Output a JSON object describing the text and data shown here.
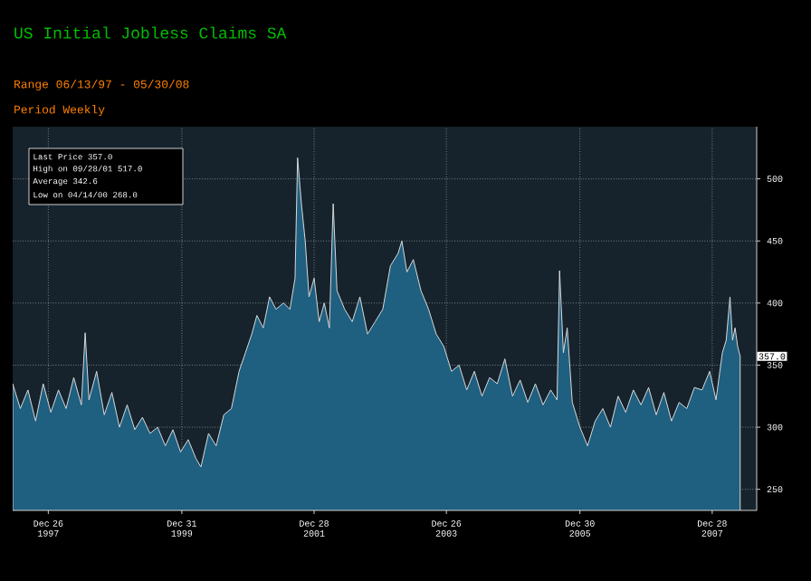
{
  "chart_data": {
    "type": "area",
    "title": "US Initial Jobless Claims SA",
    "annotations": [
      "Range 06/13/97 - 05/30/08",
      "Period Weekly",
      "Last Price 357.0",
      "High on 09/28/01 517.0",
      "Average 342.6",
      "Low on 04/14/00 268.0",
      {
        "text": "357.0",
        "x": "2008-05-30",
        "y": 357
      }
    ],
    "xlim": [
      "1997-06-13",
      "2008-08-29"
    ],
    "ylim": [
      233,
      542
    ],
    "xticks": [
      {
        "value": "1997-12-26",
        "label": "Dec 26 1997"
      },
      {
        "value": "1999-12-31",
        "label": "Dec 31 1999"
      },
      {
        "value": "2001-12-28",
        "label": "Dec 28 2001"
      },
      {
        "value": "2003-12-26",
        "label": "Dec 26 2003"
      },
      {
        "value": "2005-12-30",
        "label": "Dec 30 2005"
      },
      {
        "value": "2007-12-28",
        "label": "Dec 28 2007"
      }
    ],
    "yticks": [
      250,
      300,
      350,
      400,
      450,
      500
    ],
    "grid": true,
    "series": [
      {
        "color": "#1f5f80",
        "x": [
          "1997-06-13",
          "1997-07-25",
          "1997-09-05",
          "1997-10-17",
          "1997-11-28",
          "1998-01-09",
          "1998-02-20",
          "1998-04-03",
          "1998-05-15",
          "1998-06-26",
          "1998-07-17",
          "1998-08-07",
          "1998-09-18",
          "1998-10-30",
          "1998-12-11",
          "1999-01-22",
          "1999-03-05",
          "1999-04-16",
          "1999-05-28",
          "1999-07-09",
          "1999-08-20",
          "1999-10-01",
          "1999-11-12",
          "1999-12-24",
          "2000-02-04",
          "2000-03-17",
          "2000-04-14",
          "2000-05-26",
          "2000-07-07",
          "2000-08-18",
          "2000-09-29",
          "2000-10-20",
          "2000-11-10",
          "2000-12-15",
          "2001-01-19",
          "2001-02-16",
          "2001-03-23",
          "2001-04-27",
          "2001-06-01",
          "2001-07-13",
          "2001-08-17",
          "2001-09-14",
          "2001-09-28",
          "2001-10-19",
          "2001-11-09",
          "2001-11-30",
          "2001-12-28",
          "2002-01-25",
          "2002-02-22",
          "2002-03-22",
          "2002-04-12",
          "2002-05-03",
          "2002-06-14",
          "2002-07-26",
          "2002-09-06",
          "2002-10-18",
          "2002-11-29",
          "2003-01-10",
          "2003-02-21",
          "2003-04-04",
          "2003-04-25",
          "2003-05-23",
          "2003-06-27",
          "2003-08-08",
          "2003-09-19",
          "2003-10-31",
          "2003-12-12",
          "2004-01-23",
          "2004-03-05",
          "2004-04-16",
          "2004-05-28",
          "2004-07-09",
          "2004-08-20",
          "2004-10-01",
          "2004-11-12",
          "2004-12-24",
          "2005-02-04",
          "2005-03-18",
          "2005-04-29",
          "2005-06-10",
          "2005-07-22",
          "2005-08-26",
          "2005-09-09",
          "2005-09-30",
          "2005-10-21",
          "2005-11-18",
          "2005-12-30",
          "2006-02-10",
          "2006-03-24",
          "2006-05-05",
          "2006-06-16",
          "2006-07-28",
          "2006-09-08",
          "2006-10-20",
          "2006-12-01",
          "2007-01-12",
          "2007-02-23",
          "2007-04-06",
          "2007-05-18",
          "2007-06-29",
          "2007-08-10",
          "2007-09-21",
          "2007-11-02",
          "2007-12-14",
          "2008-01-18",
          "2008-02-22",
          "2008-03-14",
          "2008-04-04",
          "2008-04-18",
          "2008-05-02",
          "2008-05-16",
          "2008-05-30"
        ],
        "values": [
          335,
          315,
          330,
          305,
          335,
          312,
          330,
          315,
          340,
          318,
          376,
          322,
          345,
          310,
          328,
          300,
          318,
          298,
          308,
          295,
          300,
          285,
          298,
          280,
          290,
          275,
          268,
          295,
          285,
          310,
          315,
          330,
          345,
          360,
          375,
          390,
          380,
          405,
          395,
          400,
          395,
          420,
          517,
          480,
          450,
          405,
          420,
          385,
          400,
          380,
          480,
          410,
          395,
          385,
          405,
          375,
          385,
          395,
          430,
          440,
          450,
          425,
          435,
          410,
          395,
          375,
          365,
          345,
          350,
          330,
          345,
          325,
          340,
          335,
          355,
          325,
          338,
          320,
          335,
          318,
          330,
          322,
          426,
          360,
          380,
          320,
          300,
          285,
          305,
          315,
          300,
          325,
          312,
          330,
          318,
          332,
          310,
          328,
          305,
          320,
          315,
          332,
          330,
          345,
          322,
          360,
          370,
          405,
          370,
          380,
          365,
          357
        ]
      }
    ]
  }
}
